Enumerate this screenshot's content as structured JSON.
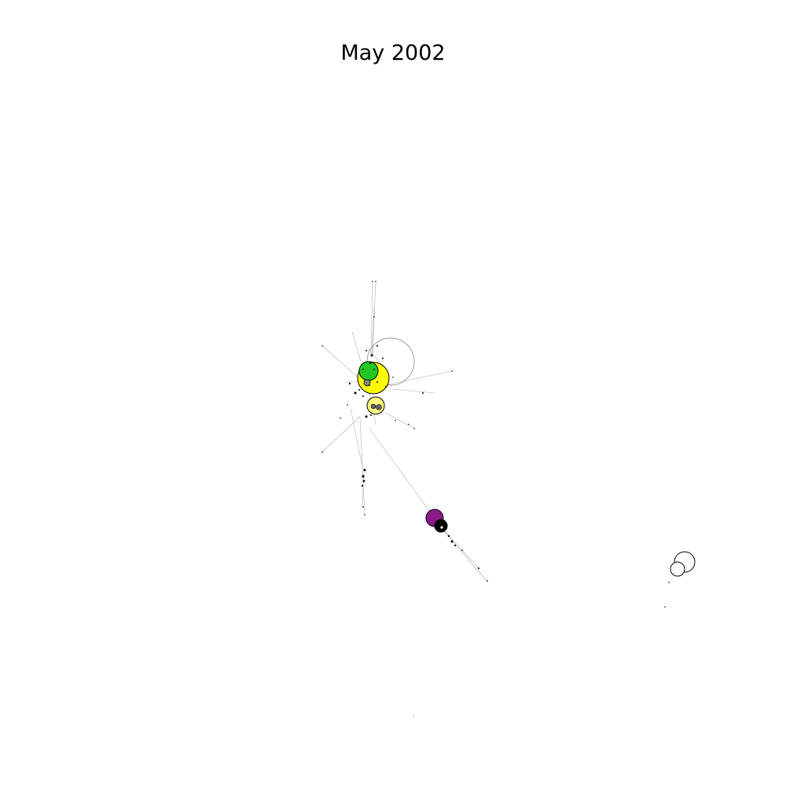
{
  "title": "May 2002",
  "colors": {
    "background": "#ffffff",
    "edge": "#b0b0b0",
    "node_stroke": "#000000",
    "node_green": "#22c822",
    "node_yellow": "#ffff00",
    "node_light_yellow": "#ffff80",
    "node_purple": "#8b1a8b",
    "node_black": "#000000",
    "node_white": "#ffffff",
    "node_grey": "#888888"
  }
}
